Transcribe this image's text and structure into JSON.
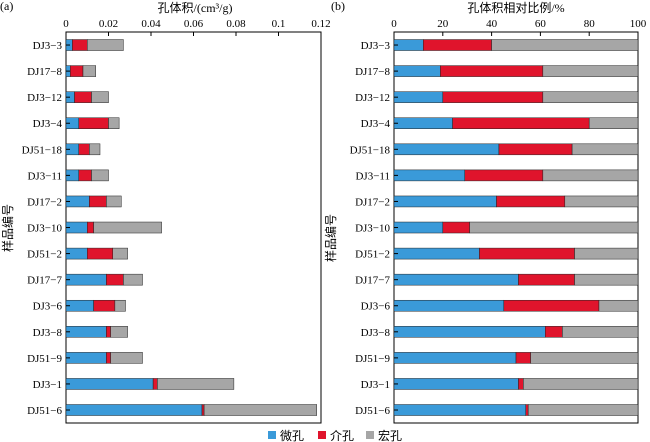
{
  "categories": [
    "DJ3-3",
    "DJ17-8",
    "DJ3-12",
    "DJ3-4",
    "DJ51-18",
    "DJ3-11",
    "DJ17-2",
    "DJ3-10",
    "DJ51-2",
    "DJ17-7",
    "DJ3-6",
    "DJ3-8",
    "DJ51-9",
    "DJ3-1",
    "DJ51-6"
  ],
  "chart_data": [
    {
      "type": "bar",
      "orientation": "horizontal",
      "stacked": true,
      "panel_label": "(a)",
      "xlabel": "孔体积/(cm³/g)",
      "ylabel": "样品编号",
      "xlim": [
        0,
        0.12
      ],
      "xticks": [
        "0",
        "0.02",
        "0.04",
        "0.06",
        "0.08",
        "0.1",
        "0.12"
      ],
      "categories": [
        "DJ3-3",
        "DJ17-8",
        "DJ3-12",
        "DJ3-4",
        "DJ51-18",
        "DJ3-11",
        "DJ17-2",
        "DJ3-10",
        "DJ51-2",
        "DJ17-7",
        "DJ3-6",
        "DJ3-8",
        "DJ51-9",
        "DJ3-1",
        "DJ51-6"
      ],
      "series": [
        {
          "name": "微孔",
          "color": "#3a9ad9",
          "values": [
            0.003,
            0.002,
            0.004,
            0.006,
            0.006,
            0.006,
            0.011,
            0.01,
            0.01,
            0.019,
            0.013,
            0.019,
            0.019,
            0.041,
            0.064
          ]
        },
        {
          "name": "介孔",
          "color": "#e0142c",
          "values": [
            0.007,
            0.006,
            0.008,
            0.014,
            0.005,
            0.006,
            0.008,
            0.003,
            0.012,
            0.008,
            0.01,
            0.002,
            0.002,
            0.002,
            0.001
          ]
        },
        {
          "name": "宏孔",
          "color": "#a6a6a6",
          "values": [
            0.017,
            0.006,
            0.008,
            0.005,
            0.005,
            0.008,
            0.007,
            0.032,
            0.007,
            0.009,
            0.005,
            0.008,
            0.015,
            0.036,
            0.053
          ]
        }
      ]
    },
    {
      "type": "bar",
      "orientation": "horizontal",
      "stacked": true,
      "panel_label": "(b)",
      "xlabel": "孔体积相对比例/%",
      "ylabel": "样品编号",
      "xlim": [
        0,
        100
      ],
      "xticks": [
        "0",
        "20",
        "40",
        "60",
        "80",
        "100"
      ],
      "categories": [
        "DJ3-3",
        "DJ17-8",
        "DJ3-12",
        "DJ3-4",
        "DJ51-18",
        "DJ3-11",
        "DJ17-2",
        "DJ3-10",
        "DJ51-2",
        "DJ17-7",
        "DJ3-6",
        "DJ3-8",
        "DJ51-9",
        "DJ3-1",
        "DJ51-6"
      ],
      "series": [
        {
          "name": "微孔",
          "color": "#3a9ad9",
          "values": [
            12,
            19,
            20,
            24,
            43,
            29,
            42,
            20,
            35,
            51,
            45,
            62,
            50,
            51,
            54
          ]
        },
        {
          "name": "介孔",
          "color": "#e0142c",
          "values": [
            28,
            42,
            41,
            56,
            30,
            32,
            28,
            11,
            39,
            23,
            39,
            7,
            6,
            2,
            1
          ]
        },
        {
          "name": "宏孔",
          "color": "#a6a6a6",
          "values": [
            60,
            39,
            39,
            20,
            27,
            39,
            30,
            69,
            26,
            26,
            16,
            31,
            44,
            47,
            45
          ]
        }
      ]
    }
  ],
  "legend": [
    {
      "label": "微孔",
      "color": "#3a9ad9"
    },
    {
      "label": "介孔",
      "color": "#e0142c"
    },
    {
      "label": "宏孔",
      "color": "#a6a6a6"
    }
  ]
}
